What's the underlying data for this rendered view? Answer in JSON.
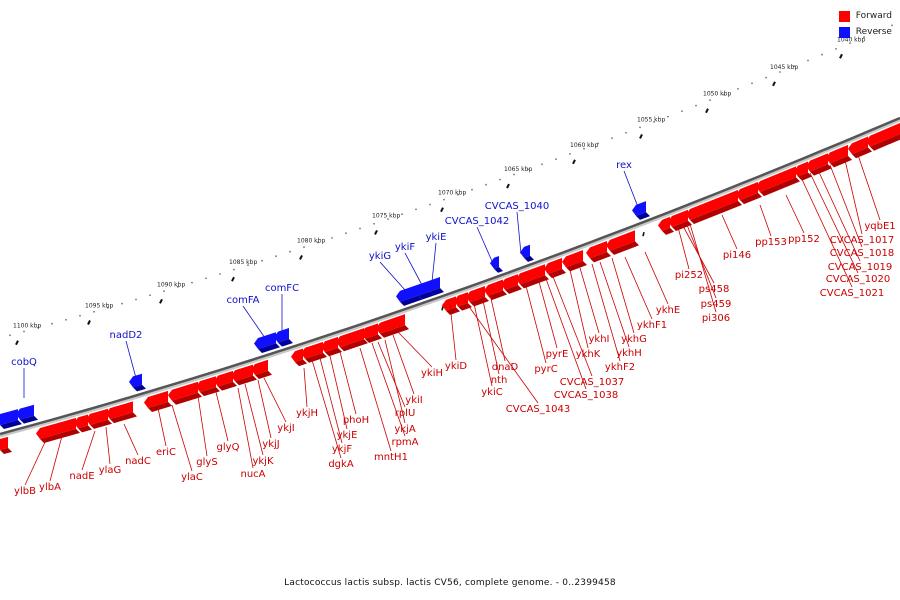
{
  "legend": {
    "forward_label": "Forward",
    "reverse_label": "Reverse",
    "forward_color": "#ff0000",
    "reverse_color": "#1010ff"
  },
  "caption": "Lactococcus lactis subsp. lactis CV56, complete genome. - 0..2399458",
  "scale_labels": [
    "1040 kbp",
    "1045 kbp",
    "1050 kbp",
    "1055 kbp",
    "1060 kbp",
    "1065 kbp",
    "1070 kbp",
    "1075 kbp",
    "1080 kbp",
    "1085 kbp",
    "1090 kbp",
    "1095 kbp",
    "1100 kbp"
  ],
  "forward_genes": [
    "yqbE1",
    "CVCAS_1017",
    "CVCAS_1018",
    "CVCAS_1019",
    "CVCAS_1020",
    "CVCAS_1021",
    "pp152",
    "pp153",
    "pi146",
    "pi252",
    "ps458",
    "ps459",
    "pi306",
    "ykhE",
    "ykhF1",
    "ykhG",
    "ykhH",
    "ykhF2",
    "ykhI",
    "ykhK",
    "pyrE",
    "pyrC",
    "CVCAS_1037",
    "CVCAS_1038",
    "dnaD",
    "nth",
    "ykiC",
    "CVCAS_1043",
    "ykiD",
    "ykiH",
    "ykiI",
    "ykjA",
    "rplU",
    "rpmA",
    "mntH1",
    "phoH",
    "ykjE",
    "ykjF",
    "dgkA",
    "ykjH",
    "ykjI",
    "ykjJ",
    "ykjK",
    "nucA",
    "glyQ",
    "glyS",
    "ylaC",
    "eriC",
    "nadC",
    "ylaG",
    "nadE",
    "ylbA",
    "ylbB"
  ],
  "reverse_genes": [
    "rex",
    "CVCAS_1040",
    "CVCAS_1042",
    "ykiE",
    "ykiF",
    "ykiG",
    "comFC",
    "comFA",
    "nadD2",
    "cobQ"
  ]
}
